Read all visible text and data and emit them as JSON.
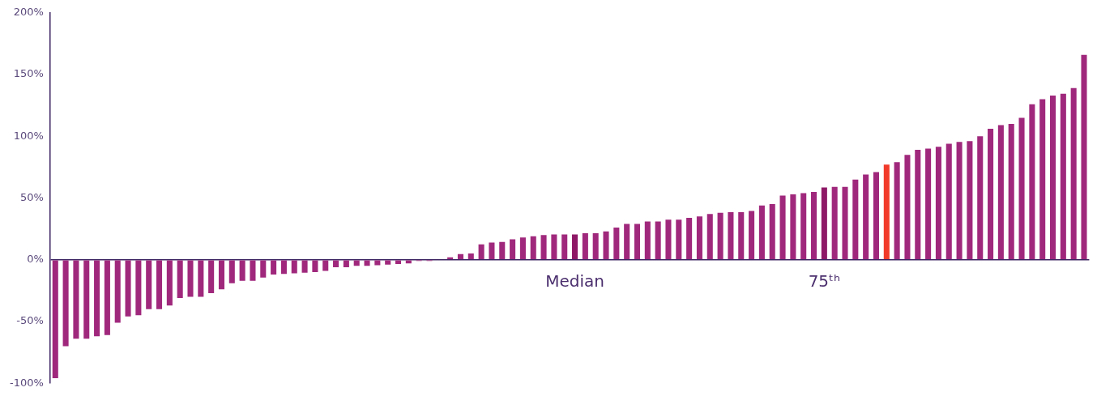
{
  "chart_data": {
    "type": "bar",
    "categories": [
      null,
      null,
      null,
      null,
      null,
      null,
      null,
      null,
      null,
      null,
      null,
      null,
      null,
      null,
      null,
      null,
      null,
      null,
      null,
      null,
      null,
      null,
      null,
      null,
      null,
      null,
      null,
      null,
      null,
      null,
      null,
      null,
      null,
      null,
      null,
      null,
      null,
      null,
      null,
      null,
      null,
      null,
      null,
      null,
      null,
      null,
      null,
      null,
      null,
      null,
      "Median",
      null,
      null,
      null,
      null,
      null,
      null,
      null,
      null,
      null,
      null,
      null,
      null,
      null,
      null,
      null,
      null,
      null,
      null,
      null,
      null,
      null,
      null,
      null,
      "75ᵗʰ",
      null,
      null,
      null,
      null,
      null,
      null,
      null,
      null,
      null,
      null,
      null,
      null,
      null,
      null,
      null,
      null,
      null,
      null,
      null,
      null,
      null,
      null,
      null,
      null,
      null
    ],
    "values": [
      -96,
      -70,
      -64,
      -64,
      -62,
      -61,
      -51,
      -46,
      -45,
      -40,
      -40,
      -37,
      -31,
      -30,
      -30,
      -27,
      -24,
      -19,
      -17,
      -17,
      -14.5,
      -12,
      -11.5,
      -11,
      -10.5,
      -10,
      -9,
      -6,
      -6,
      -5,
      -5,
      -4.5,
      -4,
      -3.5,
      -3,
      -1,
      -1,
      -0.5,
      2,
      4.5,
      5,
      12.5,
      14,
      14.5,
      16.5,
      18,
      19,
      20,
      20.5,
      20.5,
      20.5,
      21.5,
      21.5,
      23,
      26,
      29,
      29,
      31,
      31,
      32.5,
      32.5,
      34,
      35,
      37,
      38,
      38.5,
      38.5,
      39.5,
      44,
      45,
      52,
      53,
      54,
      55,
      58.5,
      59,
      59,
      65,
      69,
      71,
      77,
      79,
      85,
      89,
      90,
      91.5,
      94,
      95.5,
      96,
      100,
      106,
      109,
      110,
      115,
      126,
      130,
      133,
      134.5,
      139,
      166
    ],
    "colors": [
      "#a0287c",
      "#a0287c",
      "#a0287c",
      "#a0287c",
      "#a0287c",
      "#a0287c",
      "#a0287c",
      "#a0287c",
      "#a0287c",
      "#a0287c",
      "#a0287c",
      "#a0287c",
      "#a0287c",
      "#a0287c",
      "#a0287c",
      "#a0287c",
      "#a0287c",
      "#a0287c",
      "#a0287c",
      "#a0287c",
      "#a0287c",
      "#a0287c",
      "#a0287c",
      "#a0287c",
      "#a0287c",
      "#a0287c",
      "#a0287c",
      "#a0287c",
      "#a0287c",
      "#a0287c",
      "#a0287c",
      "#a0287c",
      "#a0287c",
      "#a0287c",
      "#a0287c",
      "#a0287c",
      "#a0287c",
      "#a0287c",
      "#a0287c",
      "#a0287c",
      "#a0287c",
      "#a0287c",
      "#a0287c",
      "#a0287c",
      "#a0287c",
      "#a0287c",
      "#a0287c",
      "#a0287c",
      "#a0287c",
      "#a0287c",
      "#8e1866",
      "#a0287c",
      "#a0287c",
      "#a0287c",
      "#a0287c",
      "#a0287c",
      "#a0287c",
      "#a0287c",
      "#a0287c",
      "#a0287c",
      "#a0287c",
      "#a0287c",
      "#a0287c",
      "#a0287c",
      "#a0287c",
      "#a0287c",
      "#a0287c",
      "#a0287c",
      "#a0287c",
      "#a0287c",
      "#a0287c",
      "#a0287c",
      "#a0287c",
      "#a0287c",
      "#8e1866",
      "#a0287c",
      "#a0287c",
      "#a0287c",
      "#a0287c",
      "#a0287c",
      "#f23a2a",
      "#a0287c",
      "#a0287c",
      "#a0287c",
      "#a0287c",
      "#a0287c",
      "#a0287c",
      "#a0287c",
      "#a0287c",
      "#a0287c",
      "#a0287c",
      "#a0287c",
      "#a0287c",
      "#a0287c",
      "#a0287c",
      "#a0287c",
      "#a0287c",
      "#a0287c",
      "#a0287c",
      "#a0287c"
    ],
    "ylim": [
      -100,
      200
    ],
    "yticks": [
      {
        "value": -100,
        "label": "-100%"
      },
      {
        "value": -50,
        "label": "-50%"
      },
      {
        "value": 0,
        "label": "0%"
      },
      {
        "value": 50,
        "label": "50%"
      },
      {
        "value": 100,
        "label": "100%"
      },
      {
        "value": 150,
        "label": "150%"
      },
      {
        "value": 200,
        "label": "200%"
      }
    ],
    "legend": false,
    "grid": false
  }
}
